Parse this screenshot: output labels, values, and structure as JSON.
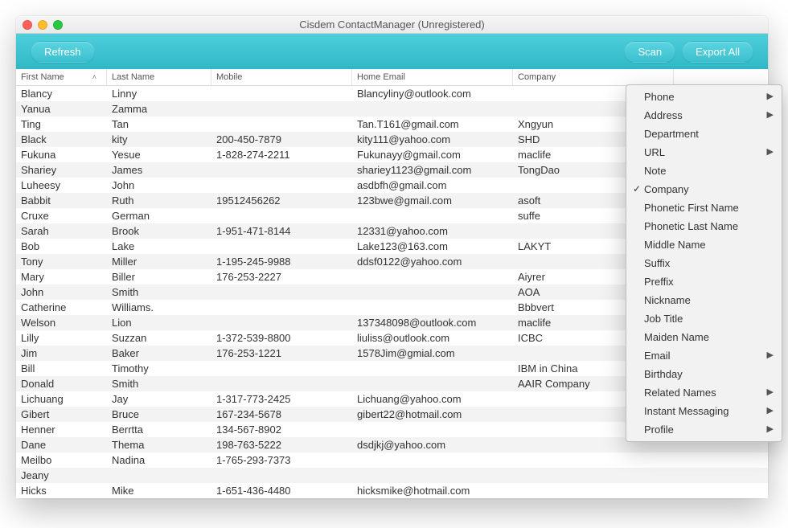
{
  "window": {
    "title": "Cisdem ContactManager (Unregistered)",
    "traffic_colors": {
      "close": "#ff5f57",
      "min": "#ffbd2e",
      "max": "#28c940"
    }
  },
  "toolbar": {
    "refresh": "Refresh",
    "scan": "Scan",
    "export_all": "Export All"
  },
  "columns": [
    "First Name",
    "Last Name",
    "Mobile",
    "Home Email",
    "Company",
    ""
  ],
  "sort_column_index": 0,
  "rows": [
    {
      "first": "Blancy",
      "last": "Linny",
      "mobile": "",
      "email": "Blancyliny@outlook.com",
      "company": ""
    },
    {
      "first": "Yanua",
      "last": "Zamma",
      "mobile": "",
      "email": "",
      "company": ""
    },
    {
      "first": "Ting",
      "last": "Tan",
      "mobile": "",
      "email": "Tan.T161@gmail.com",
      "company": "Xngyun"
    },
    {
      "first": "Black",
      "last": "kity",
      "mobile": "200-450-7879",
      "email": "kity111@yahoo.com",
      "company": "SHD"
    },
    {
      "first": "Fukuna",
      "last": "Yesue",
      "mobile": "1-828-274-2211",
      "email": "Fukunayy@gmail.com",
      "company": "maclife"
    },
    {
      "first": "Shariey",
      "last": "James",
      "mobile": "",
      "email": "shariey1123@gmail.com",
      "company": "TongDao"
    },
    {
      "first": "Luheesy",
      "last": "John",
      "mobile": "",
      "email": "asdbfh@gmail.com",
      "company": ""
    },
    {
      "first": "Babbit",
      "last": "Ruth",
      "mobile": "19512456262",
      "email": "123bwe@gmail.com",
      "company": "asoft"
    },
    {
      "first": "Cruxe",
      "last": "German",
      "mobile": "",
      "email": "",
      "company": "suffe"
    },
    {
      "first": "Sarah",
      "last": "Brook",
      "mobile": "1-951-471-8144",
      "email": "12331@yahoo.com",
      "company": ""
    },
    {
      "first": "Bob",
      "last": "Lake",
      "mobile": "",
      "email": "Lake123@163.com",
      "company": "LAKYT"
    },
    {
      "first": "Tony",
      "last": "Miller",
      "mobile": "1-195-245-9988",
      "email": "ddsf0122@yahoo.com",
      "company": ""
    },
    {
      "first": "Mary",
      "last": "Biller",
      "mobile": "176-253-2227",
      "email": "",
      "company": "Aiyrer"
    },
    {
      "first": "John",
      "last": "Smith",
      "mobile": "",
      "email": "",
      "company": "AOA"
    },
    {
      "first": "Catherine",
      "last": "Williams.",
      "mobile": "",
      "email": "",
      "company": "Bbbvert"
    },
    {
      "first": "Welson",
      "last": "Lion",
      "mobile": "",
      "email": "137348098@outlook.com",
      "company": "maclife"
    },
    {
      "first": "Lilly",
      "last": "Suzzan",
      "mobile": "1-372-539-8800",
      "email": "liuliss@outlook.com",
      "company": "ICBC"
    },
    {
      "first": "Jim",
      "last": "Baker",
      "mobile": "176-253-1221",
      "email": "1578Jim@gmial.com",
      "company": ""
    },
    {
      "first": "Bill",
      "last": "Timothy",
      "mobile": "",
      "email": "",
      "company": "IBM in China"
    },
    {
      "first": "Donald",
      "last": "Smith",
      "mobile": "",
      "email": "",
      "company": "AAIR Company"
    },
    {
      "first": "Lichuang",
      "last": "Jay",
      "mobile": "1-317-773-2425",
      "email": "Lichuang@yahoo.com",
      "company": ""
    },
    {
      "first": "Gibert",
      "last": "Bruce",
      "mobile": "167-234-5678",
      "email": "gibert22@hotmail.com",
      "company": ""
    },
    {
      "first": "Henner",
      "last": "Berrtta",
      "mobile": "134-567-8902",
      "email": "",
      "company": ""
    },
    {
      "first": "Dane",
      "last": "Thema",
      "mobile": "198-763-5222",
      "email": "dsdjkj@yahoo.com",
      "company": ""
    },
    {
      "first": "Meilbo",
      "last": "Nadina",
      "mobile": "1-765-293-7373",
      "email": "",
      "company": ""
    },
    {
      "first": "Jeany",
      "last": "",
      "mobile": "",
      "email": "",
      "company": ""
    },
    {
      "first": "Hicks",
      "last": "Mike",
      "mobile": "1-651-436-4480",
      "email": "hicksmike@hotmail.com",
      "company": ""
    }
  ],
  "menu": {
    "items": [
      {
        "label": "Phone",
        "submenu": true,
        "checked": false
      },
      {
        "label": "Address",
        "submenu": true,
        "checked": false
      },
      {
        "label": "Department",
        "submenu": false,
        "checked": false
      },
      {
        "label": "URL",
        "submenu": true,
        "checked": false
      },
      {
        "label": "Note",
        "submenu": false,
        "checked": false
      },
      {
        "label": "Company",
        "submenu": false,
        "checked": true
      },
      {
        "label": "Phonetic First Name",
        "submenu": false,
        "checked": false
      },
      {
        "label": "Phonetic Last Name",
        "submenu": false,
        "checked": false
      },
      {
        "label": "Middle Name",
        "submenu": false,
        "checked": false
      },
      {
        "label": "Suffix",
        "submenu": false,
        "checked": false
      },
      {
        "label": "Preffix",
        "submenu": false,
        "checked": false
      },
      {
        "label": "Nickname",
        "submenu": false,
        "checked": false
      },
      {
        "label": "Job Title",
        "submenu": false,
        "checked": false
      },
      {
        "label": "Maiden Name",
        "submenu": false,
        "checked": false
      },
      {
        "label": "Email",
        "submenu": true,
        "checked": false
      },
      {
        "label": "Birthday",
        "submenu": false,
        "checked": false
      },
      {
        "label": "Related Names",
        "submenu": true,
        "checked": false
      },
      {
        "label": "Instant Messaging",
        "submenu": true,
        "checked": false
      },
      {
        "label": "Profile",
        "submenu": true,
        "checked": false
      }
    ]
  }
}
